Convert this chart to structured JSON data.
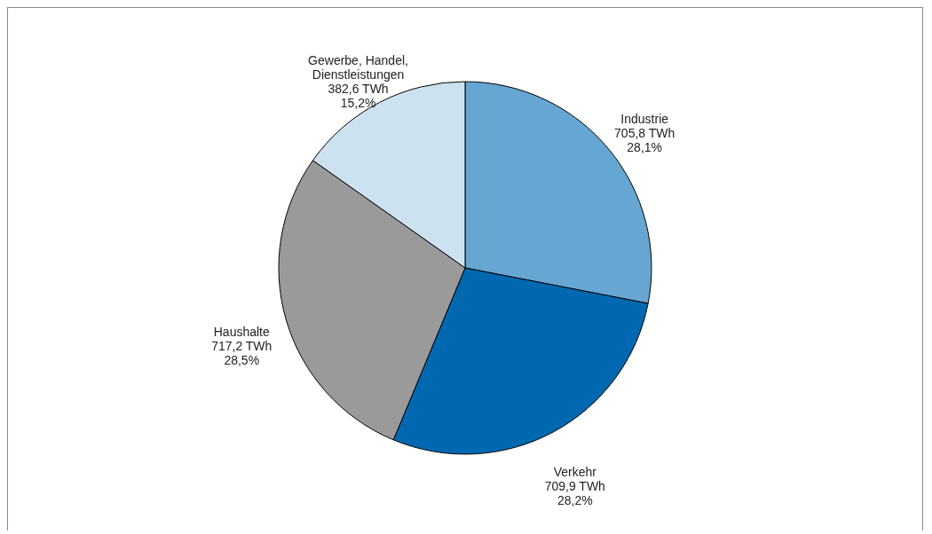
{
  "chart_data": {
    "type": "pie",
    "categories": [
      "Industrie",
      "Verkehr",
      "Haushalte",
      "Gewerbe, Handel, Dienstleistungen"
    ],
    "values": [
      705.8,
      709.9,
      717.2,
      382.6
    ],
    "value_labels": [
      "705,8 TWh\n28,1%",
      "709,9 TWh\n28,2%",
      "717,2 TWh\n28,5%",
      "382,6 TWh\n15,2%"
    ],
    "colors": [
      "#66a6d2",
      "#0068b0",
      "#9a9a9a",
      "#cde2f0"
    ]
  }
}
